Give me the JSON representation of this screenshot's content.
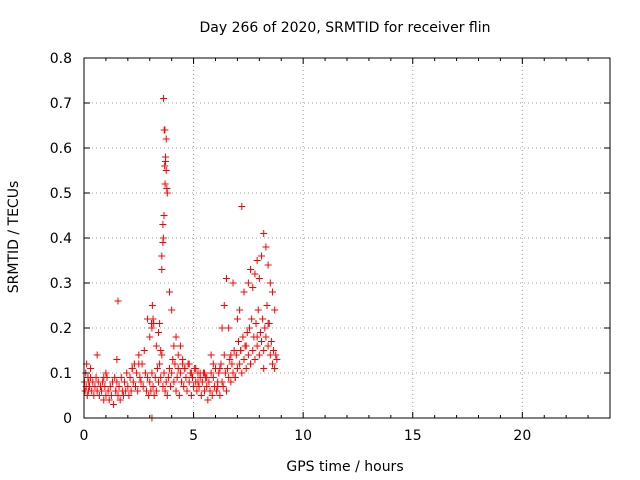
{
  "chart_data": {
    "type": "scatter",
    "title": "Day 266 of 2020, SRMTID for receiver flin",
    "xlabel": "GPS time / hours",
    "ylabel": "SRMTID / TECUs",
    "xlim": [
      0,
      24
    ],
    "ylim": [
      0,
      0.8
    ],
    "x_ticks": [
      0,
      5,
      10,
      15,
      20
    ],
    "y_ticks": [
      0,
      0.1,
      0.2,
      0.3,
      0.4,
      0.5,
      0.6,
      0.7,
      0.8
    ],
    "x_tick_labels": [
      "0",
      "5",
      "10",
      "15",
      "20"
    ],
    "y_tick_labels": [
      "0",
      "0.1",
      "0.2",
      "0.3",
      "0.4",
      "0.5",
      "0.6",
      "0.7",
      "0.8"
    ],
    "grid": true,
    "marker": "+",
    "marker_color": "#ff0000",
    "series": [
      {
        "name": "SRMTID",
        "x": [
          0.02,
          0.05,
          0.08,
          0.1,
          0.12,
          0.15,
          0.18,
          0.2,
          0.22,
          0.25,
          0.3,
          0.35,
          0.4,
          0.45,
          0.5,
          0.55,
          0.6,
          0.65,
          0.7,
          0.75,
          0.8,
          0.85,
          0.9,
          0.95,
          1.0,
          1.05,
          1.1,
          1.15,
          1.2,
          1.25,
          1.3,
          1.35,
          1.4,
          1.45,
          1.5,
          1.55,
          1.6,
          1.65,
          1.7,
          1.75,
          1.8,
          1.85,
          1.9,
          1.95,
          2.0,
          2.05,
          2.1,
          2.15,
          2.2,
          2.25,
          2.3,
          2.35,
          2.4,
          2.45,
          2.5,
          2.55,
          2.6,
          2.65,
          2.7,
          2.75,
          2.8,
          2.85,
          2.9,
          2.95,
          3.0,
          3.05,
          3.1,
          3.15,
          3.2,
          3.25,
          3.3,
          3.35,
          3.4,
          3.45,
          3.5,
          3.55,
          3.6,
          3.65,
          3.7,
          3.75,
          3.8,
          3.85,
          3.9,
          3.95,
          4.0,
          4.05,
          4.1,
          4.15,
          4.2,
          4.25,
          4.3,
          4.35,
          4.4,
          4.45,
          4.5,
          4.55,
          4.6,
          4.65,
          4.7,
          4.75,
          4.8,
          4.85,
          4.9,
          4.95,
          5.0,
          5.05,
          5.1,
          5.15,
          5.2,
          5.25,
          5.3,
          5.35,
          5.4,
          5.45,
          5.5,
          5.55,
          5.6,
          5.65,
          5.7,
          5.75,
          5.8,
          5.85,
          5.9,
          5.95,
          6.0,
          6.05,
          6.1,
          6.15,
          6.2,
          6.25,
          6.3,
          6.35,
          6.4,
          6.45,
          6.5,
          6.55,
          6.6,
          6.65,
          6.7,
          6.75,
          6.8,
          6.85,
          6.9,
          6.95,
          7.0,
          7.05,
          7.1,
          7.15,
          7.2,
          7.25,
          7.3,
          7.35,
          7.4,
          7.45,
          7.5,
          7.55,
          7.6,
          7.65,
          7.7,
          7.75,
          7.8,
          7.85,
          7.9,
          7.95,
          8.0,
          8.05,
          8.1,
          8.15,
          8.2,
          8.25,
          8.3,
          8.35,
          8.4,
          8.45,
          8.5,
          8.55,
          8.6,
          8.65,
          8.7,
          8.75,
          8.8,
          0.3,
          0.6,
          1.45,
          1.5,
          1.55,
          2.9,
          3.0,
          3.1,
          3.15,
          3.45,
          3.5,
          3.55,
          3.6,
          3.62,
          3.65,
          3.68,
          3.7,
          3.72,
          3.75,
          3.8,
          3.9,
          4.0,
          4.2,
          4.4,
          4.6,
          6.3,
          6.4,
          6.5,
          6.6,
          6.8,
          7.0,
          7.1,
          7.2,
          7.3,
          7.5,
          7.6,
          7.7,
          7.8,
          7.9,
          8.0,
          8.1,
          8.2,
          8.3,
          8.4,
          8.5,
          8.6,
          7.15,
          3.08,
          3.12,
          3.18,
          3.55,
          3.6,
          3.63,
          3.66,
          3.69,
          3.72,
          3.75,
          3.78,
          2.5,
          2.2,
          1.0,
          0.9,
          4.8,
          5.1,
          5.3,
          5.6,
          5.9,
          6.2,
          6.7,
          6.9,
          7.4,
          7.6,
          7.9,
          8.2,
          8.4,
          8.7,
          3.4,
          3.3,
          4.1,
          4.3,
          4.5,
          4.9,
          5.2,
          5.5,
          5.8,
          6.1
        ],
        "y": [
          0.08,
          0.06,
          0.1,
          0.07,
          0.12,
          0.05,
          0.09,
          0.06,
          0.08,
          0.07,
          0.09,
          0.06,
          0.08,
          0.05,
          0.07,
          0.09,
          0.06,
          0.08,
          0.05,
          0.07,
          0.06,
          0.08,
          0.04,
          0.07,
          0.05,
          0.09,
          0.06,
          0.04,
          0.07,
          0.05,
          0.08,
          0.03,
          0.09,
          0.06,
          0.08,
          0.05,
          0.07,
          0.04,
          0.09,
          0.06,
          0.05,
          0.08,
          0.06,
          0.1,
          0.07,
          0.05,
          0.09,
          0.06,
          0.11,
          0.08,
          0.12,
          0.07,
          0.1,
          0.06,
          0.14,
          0.09,
          0.08,
          0.12,
          0.07,
          0.15,
          0.1,
          0.06,
          0.09,
          0.05,
          0.08,
          0.06,
          0.1,
          0.07,
          0.05,
          0.09,
          0.06,
          0.11,
          0.08,
          0.12,
          0.09,
          0.14,
          0.07,
          0.1,
          0.06,
          0.08,
          0.05,
          0.09,
          0.11,
          0.07,
          0.1,
          0.13,
          0.08,
          0.12,
          0.06,
          0.09,
          0.11,
          0.05,
          0.1,
          0.08,
          0.13,
          0.07,
          0.11,
          0.09,
          0.06,
          0.12,
          0.08,
          0.1,
          0.05,
          0.09,
          0.07,
          0.11,
          0.08,
          0.06,
          0.1,
          0.07,
          0.09,
          0.05,
          0.08,
          0.1,
          0.06,
          0.09,
          0.07,
          0.04,
          0.08,
          0.06,
          0.1,
          0.05,
          0.09,
          0.07,
          0.11,
          0.06,
          0.08,
          0.1,
          0.05,
          0.12,
          0.08,
          0.07,
          0.14,
          0.1,
          0.06,
          0.11,
          0.09,
          0.13,
          0.08,
          0.12,
          0.1,
          0.15,
          0.09,
          0.14,
          0.11,
          0.17,
          0.12,
          0.15,
          0.1,
          0.18,
          0.13,
          0.16,
          0.11,
          0.19,
          0.14,
          0.2,
          0.12,
          0.22,
          0.15,
          0.18,
          0.13,
          0.21,
          0.16,
          0.24,
          0.14,
          0.19,
          0.17,
          0.22,
          0.15,
          0.2,
          0.18,
          0.25,
          0.16,
          0.21,
          0.14,
          0.17,
          0.12,
          0.15,
          0.11,
          0.14,
          0.13,
          0.11,
          0.14,
          0.06,
          0.13,
          0.26,
          0.22,
          0.18,
          0.2,
          0.22,
          0.21,
          0.15,
          0.33,
          0.43,
          0.4,
          0.45,
          0.56,
          0.52,
          0.57,
          0.62,
          0.5,
          0.28,
          0.24,
          0.18,
          0.16,
          0.11,
          0.2,
          0.25,
          0.31,
          0.2,
          0.3,
          0.22,
          0.24,
          0.47,
          0.28,
          0.3,
          0.33,
          0.29,
          0.32,
          0.35,
          0.31,
          0.36,
          0.41,
          0.38,
          0.34,
          0.3,
          0.28,
          0.15,
          0.21,
          0.25,
          0.21,
          0.36,
          0.39,
          0.71,
          0.64,
          0.64,
          0.58,
          0.55,
          0.51,
          0.12,
          0.11,
          0.1,
          0.09,
          0.12,
          0.11,
          0.1,
          0.09,
          0.12,
          0.11,
          0.14,
          0.09,
          0.16,
          0.12,
          0.18,
          0.11,
          0.21,
          0.24,
          0.19,
          0.16,
          0.16,
          0.14,
          0.12,
          0.1,
          0.08,
          0.1,
          0.14,
          0.07
        ]
      }
    ],
    "isolated_points": [
      {
        "x": 3.1,
        "y": 0.0
      }
    ]
  }
}
